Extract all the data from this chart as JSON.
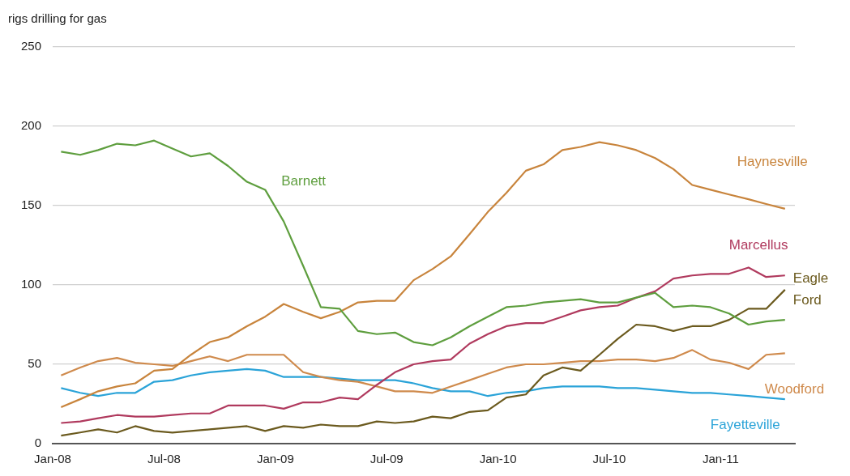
{
  "chart_data": {
    "type": "line",
    "ylabel": "rigs drilling for gas",
    "x": [
      "2008-01-15",
      "2008-02-15",
      "2008-03-15",
      "2008-04-15",
      "2008-05-15",
      "2008-06-15",
      "2008-07-15",
      "2008-08-15",
      "2008-09-15",
      "2008-10-15",
      "2008-11-15",
      "2008-12-15",
      "2009-01-15",
      "2009-02-15",
      "2009-03-15",
      "2009-04-15",
      "2009-05-15",
      "2009-06-15",
      "2009-07-15",
      "2009-08-15",
      "2009-09-15",
      "2009-10-15",
      "2009-11-15",
      "2009-12-15",
      "2010-01-15",
      "2010-02-15",
      "2010-03-15",
      "2010-04-15",
      "2010-05-15",
      "2010-06-15",
      "2010-07-15",
      "2010-08-15",
      "2010-09-15",
      "2010-10-15",
      "2010-11-15",
      "2010-12-15",
      "2011-01-15",
      "2011-02-15",
      "2011-03-15",
      "2011-04-15"
    ],
    "series": [
      {
        "name": "Barnett",
        "color": "#5e9e3e",
        "values": [
          184,
          182,
          185,
          189,
          188,
          191,
          186,
          181,
          183,
          175,
          165,
          160,
          140,
          112,
          86,
          85,
          71,
          69,
          70,
          64,
          62,
          67,
          74,
          80,
          86,
          87,
          89,
          90,
          91,
          89,
          89,
          92,
          95,
          86,
          87,
          86,
          82,
          75,
          77,
          78
        ]
      },
      {
        "name": "Haynesville",
        "color": "#c8843c",
        "values": [
          23,
          28,
          33,
          36,
          38,
          46,
          47,
          56,
          64,
          67,
          74,
          80,
          88,
          83,
          79,
          83,
          89,
          90,
          90,
          103,
          110,
          118,
          132,
          146,
          158,
          172,
          176,
          185,
          187,
          190,
          188,
          185,
          180,
          173,
          163,
          160,
          157,
          154,
          151,
          148
        ]
      },
      {
        "name": "Marcellus",
        "color": "#b03a5e",
        "values": [
          13,
          14,
          16,
          18,
          17,
          17,
          18,
          19,
          19,
          24,
          24,
          24,
          22,
          26,
          26,
          29,
          28,
          37,
          45,
          50,
          52,
          53,
          63,
          69,
          74,
          76,
          76,
          80,
          84,
          86,
          87,
          92,
          96,
          104,
          106,
          107,
          107,
          111,
          105,
          106
        ]
      },
      {
        "name": "Eagle Ford",
        "color": "#6b5a1e",
        "values": [
          5,
          7,
          9,
          7,
          11,
          8,
          7,
          8,
          9,
          10,
          11,
          8,
          11,
          10,
          12,
          11,
          11,
          14,
          13,
          14,
          17,
          16,
          20,
          21,
          29,
          31,
          43,
          48,
          46,
          56,
          66,
          75,
          74,
          71,
          74,
          74,
          78,
          85,
          85,
          97
        ]
      },
      {
        "name": "Woodford",
        "color": "#cf8a4c",
        "values": [
          43,
          48,
          52,
          54,
          51,
          50,
          49,
          52,
          55,
          52,
          56,
          56,
          56,
          45,
          42,
          40,
          39,
          36,
          33,
          33,
          32,
          36,
          40,
          44,
          48,
          50,
          50,
          51,
          52,
          52,
          53,
          53,
          52,
          54,
          59,
          53,
          51,
          47,
          56,
          57
        ]
      },
      {
        "name": "Fayetteville",
        "color": "#2aa3d8",
        "values": [
          35,
          32,
          30,
          32,
          32,
          39,
          40,
          43,
          45,
          46,
          47,
          46,
          42,
          42,
          42,
          41,
          40,
          40,
          40,
          38,
          35,
          33,
          33,
          30,
          32,
          33,
          35,
          36,
          36,
          36,
          35,
          35,
          34,
          33,
          32,
          32,
          31,
          30,
          29,
          28
        ]
      }
    ],
    "xlim": [
      "2008-01",
      "2011-05"
    ],
    "xticks": [
      {
        "value": "2008-01",
        "label": "Jan-08"
      },
      {
        "value": "2008-07",
        "label": "Jul-08"
      },
      {
        "value": "2009-01",
        "label": "Jan-09"
      },
      {
        "value": "2009-07",
        "label": "Jul-09"
      },
      {
        "value": "2010-01",
        "label": "Jan-10"
      },
      {
        "value": "2010-07",
        "label": "Jul-10"
      },
      {
        "value": "2011-01",
        "label": "Jan-11"
      }
    ],
    "ylim": [
      0,
      250
    ],
    "yticks": [
      0,
      50,
      100,
      150,
      200,
      250
    ],
    "grid": "y",
    "legend": false,
    "marker": "none",
    "line_style": "solid"
  }
}
